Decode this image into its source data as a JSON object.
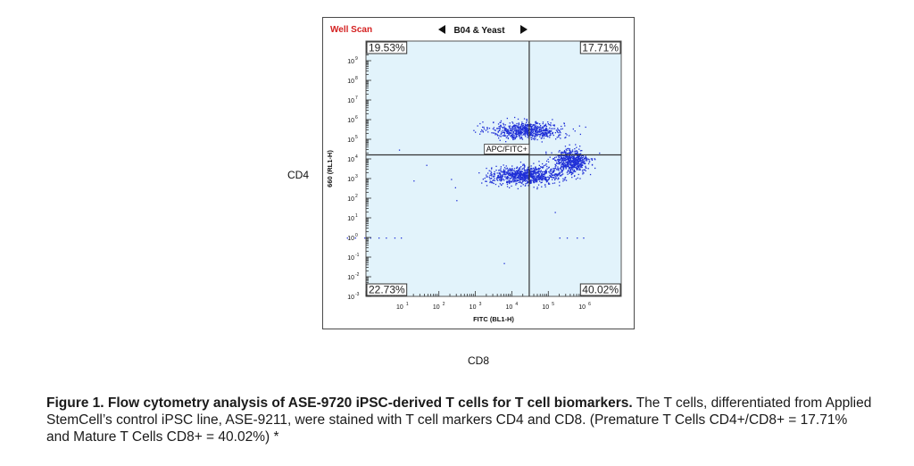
{
  "panel": {
    "well_scan_label": "Well Scan",
    "sample_label": "B04 & Yeast",
    "nav_prev_icon": "triangle-left-icon",
    "nav_next_icon": "triangle-right-icon",
    "gate_label": "APC/FITC+"
  },
  "outer_labels": {
    "cd4": "CD4",
    "cd8": "CD8"
  },
  "caption": {
    "bold_part": "Figure 1. Flow cytometry analysis of ASE-9720 iPSC-derived T cells for T cell biomarkers.",
    "normal_part": " The T cells, differentiated from Applied StemCell’s control iPSC line, ASE-9211, were stained with T cell markers CD4 and CD8.  (Premature T Cells CD4+/CD8+ = 17.71% and Mature T Cells CD8+ = 40.02%) *"
  },
  "colors": {
    "plot_bg": "#e2f3fb",
    "dots": "#1f2fd6",
    "well_scan": "#d42020",
    "quad_line": "#333333"
  },
  "chart_data": {
    "type": "scatter",
    "title": "",
    "xlabel": "FITC (BL1-H)",
    "ylabel": "660 (RL1-H)",
    "x_scale": "log",
    "y_scale": "log",
    "xlim": [
      1,
      10000000
    ],
    "ylim": [
      0.001,
      10000000000
    ],
    "x_ticks": [
      {
        "value": 10,
        "label": "10",
        "exp": "1"
      },
      {
        "value": 100,
        "label": "10",
        "exp": "2"
      },
      {
        "value": 1000,
        "label": "10",
        "exp": "3"
      },
      {
        "value": 10000,
        "label": "10",
        "exp": "4"
      },
      {
        "value": 100000,
        "label": "10",
        "exp": "5"
      },
      {
        "value": 1000000,
        "label": "10",
        "exp": "6"
      }
    ],
    "y_ticks": [
      {
        "value": 1000000000,
        "label": "10",
        "exp": "9"
      },
      {
        "value": 100000000,
        "label": "10",
        "exp": "8"
      },
      {
        "value": 10000000,
        "label": "10",
        "exp": "7"
      },
      {
        "value": 1000000,
        "label": "10",
        "exp": "6"
      },
      {
        "value": 100000,
        "label": "10",
        "exp": "5"
      },
      {
        "value": 10000,
        "label": "10",
        "exp": "4"
      },
      {
        "value": 1000,
        "label": "10",
        "exp": "3"
      },
      {
        "value": 100,
        "label": "10",
        "exp": "2"
      },
      {
        "value": 10,
        "label": "10",
        "exp": "1"
      },
      {
        "value": 1,
        "label": "10",
        "exp": "0"
      },
      {
        "value": 0.1,
        "label": "10",
        "exp": "-1"
      },
      {
        "value": 0.01,
        "label": "10",
        "exp": "-2"
      },
      {
        "value": 0.001,
        "label": "10",
        "exp": "-3"
      }
    ],
    "gate": {
      "x": 30000,
      "y": 16000
    },
    "quadrants": {
      "upper_left": "19.53%",
      "upper_right": "17.71%",
      "lower_left": "22.73%",
      "lower_right": "40.02%"
    },
    "populations": [
      {
        "name": "",
        "x_center": 25000,
        "y_center": 300000,
        "x_spread": 0.5,
        "y_spread": 0.22,
        "count": 700
      },
      {
        "name": "",
        "x_center": 25000,
        "y_center": 1500,
        "x_spread": 0.5,
        "y_spread": 0.22,
        "count": 900
      },
      {
        "name": "",
        "x_center": 400000,
        "y_center": 8000,
        "x_spread": 0.25,
        "y_spread": 0.3,
        "count": 600
      }
    ],
    "grid": false,
    "legend": "none"
  }
}
